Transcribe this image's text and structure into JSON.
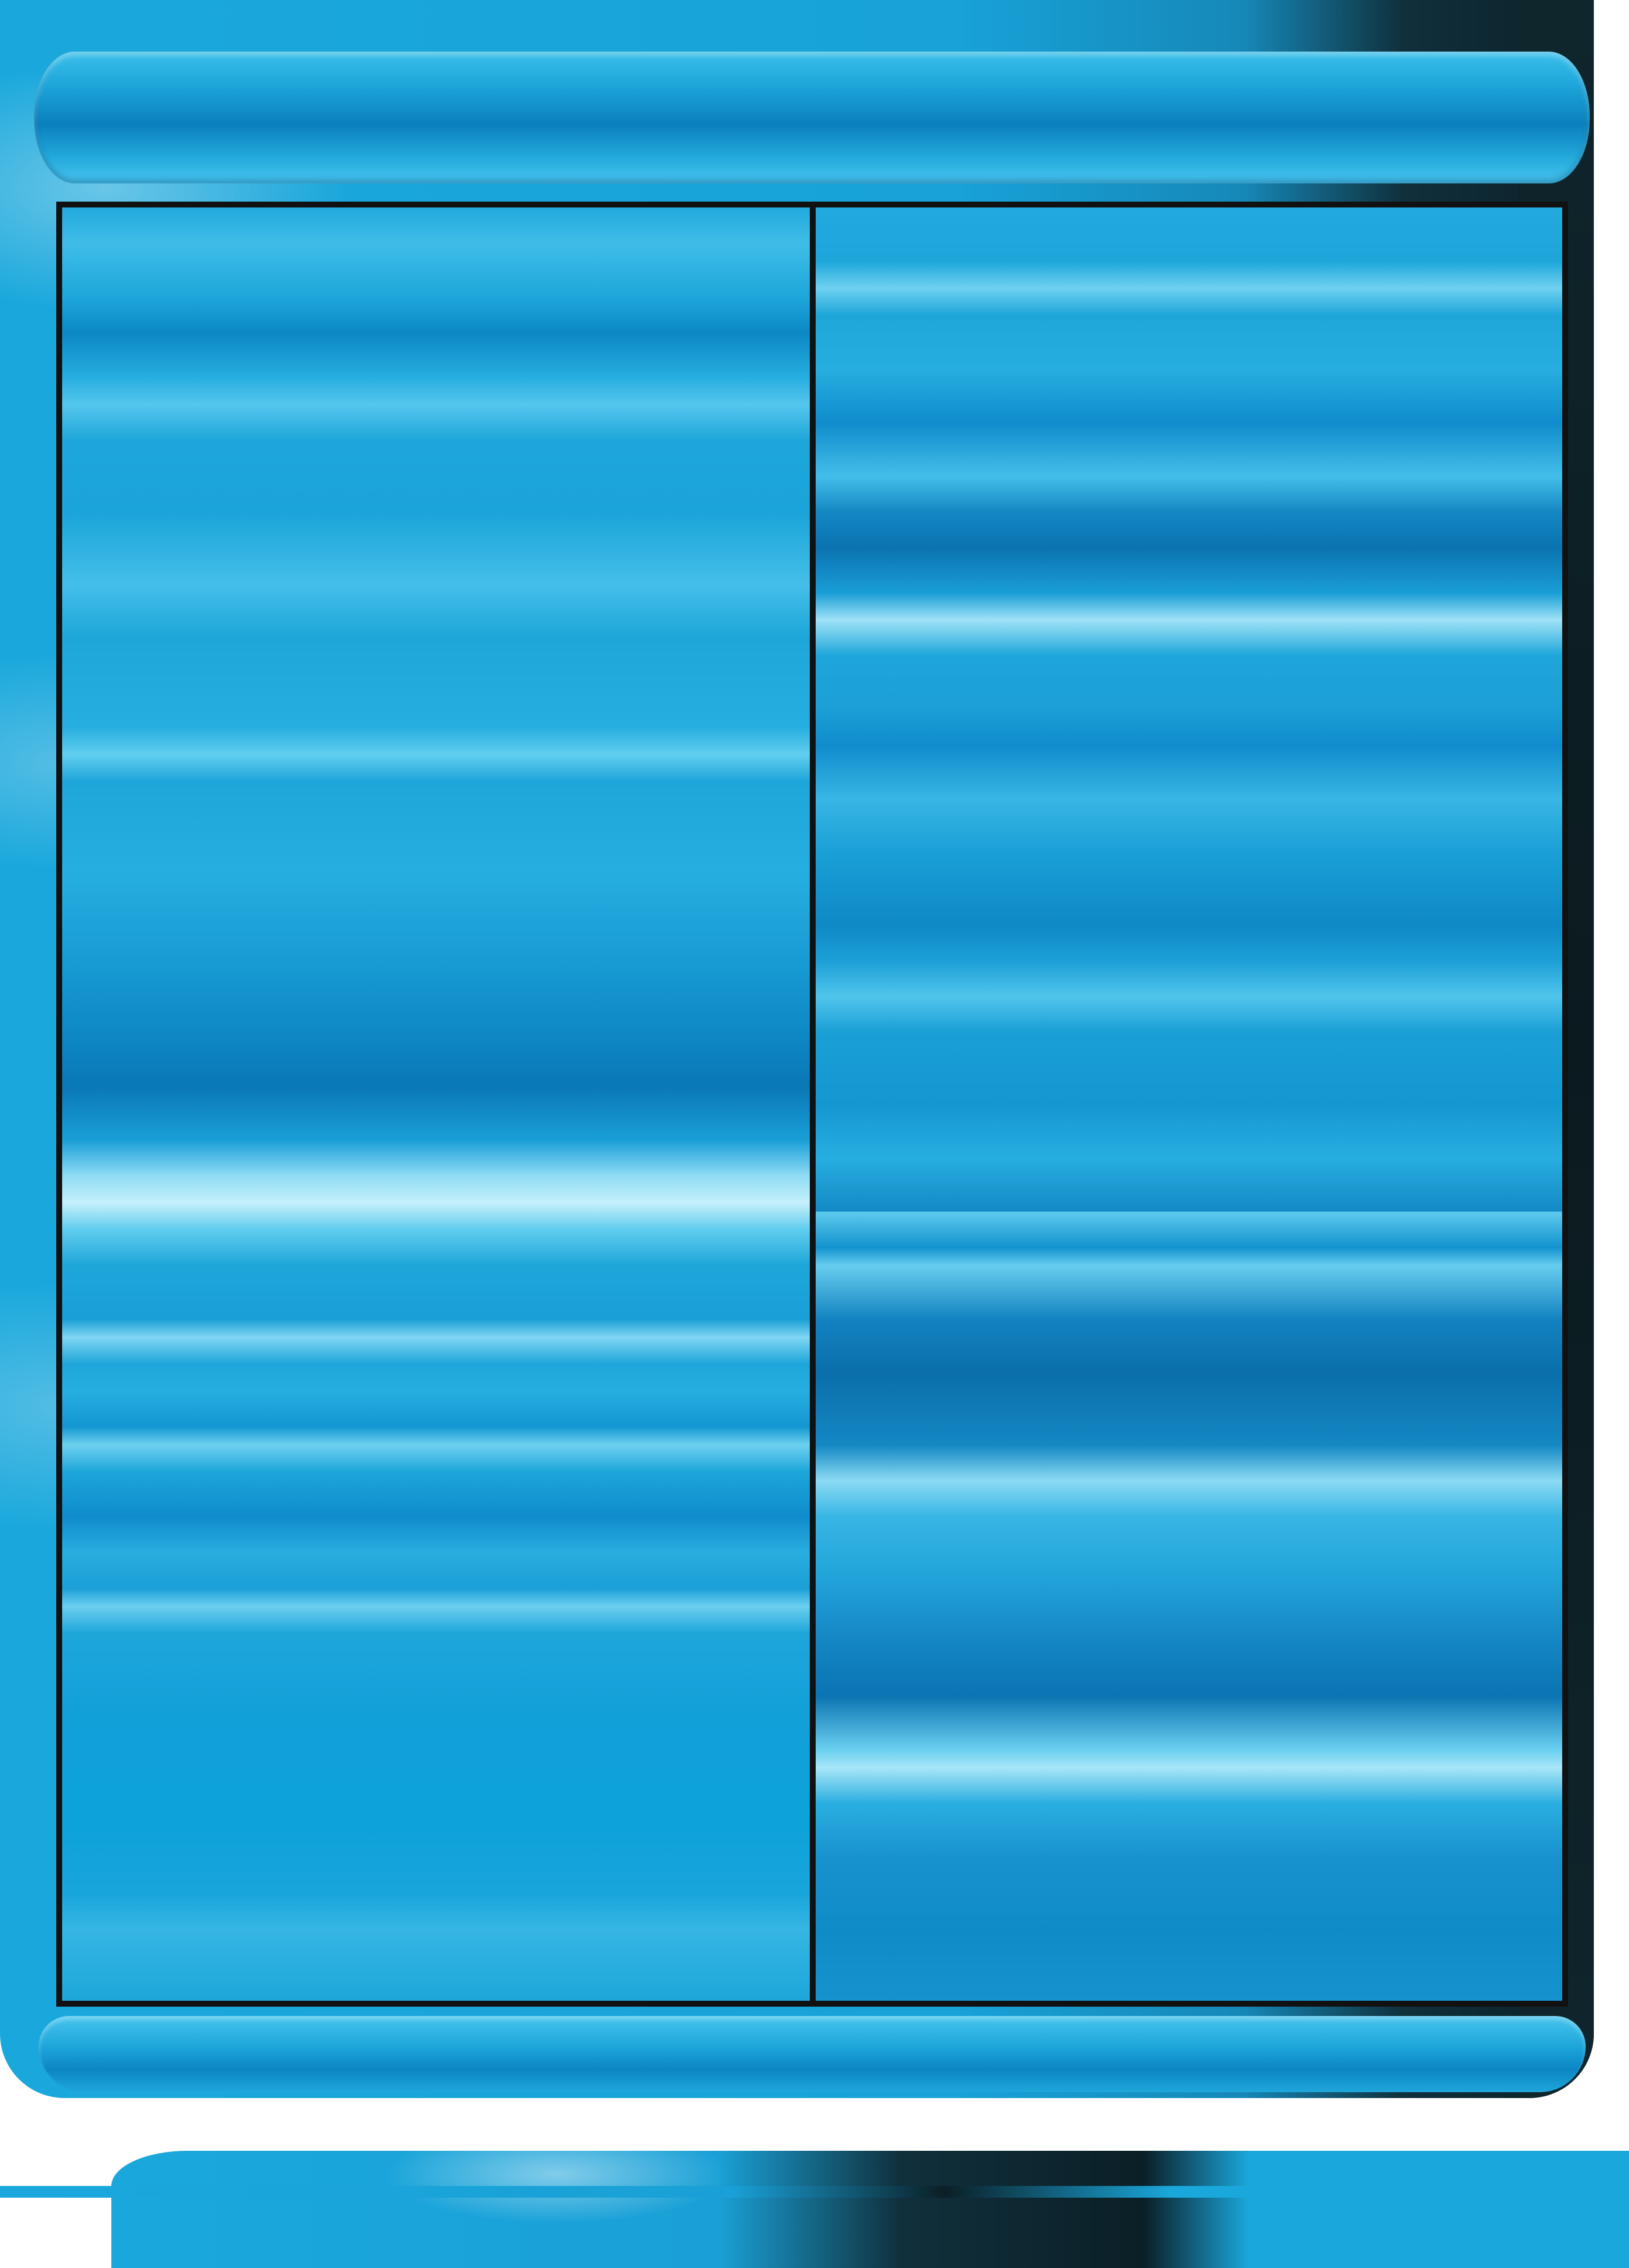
{
  "card": {
    "header_text": "",
    "left_column_text": "",
    "right_column_text": "",
    "footer_text": ""
  },
  "colors": {
    "primary_blue": "#1ea6da",
    "deep_blue": "#0a78b5",
    "light_blue": "#c6f0fb",
    "frame_border": "#111111",
    "bubble_dark": "#0b1a1f"
  }
}
